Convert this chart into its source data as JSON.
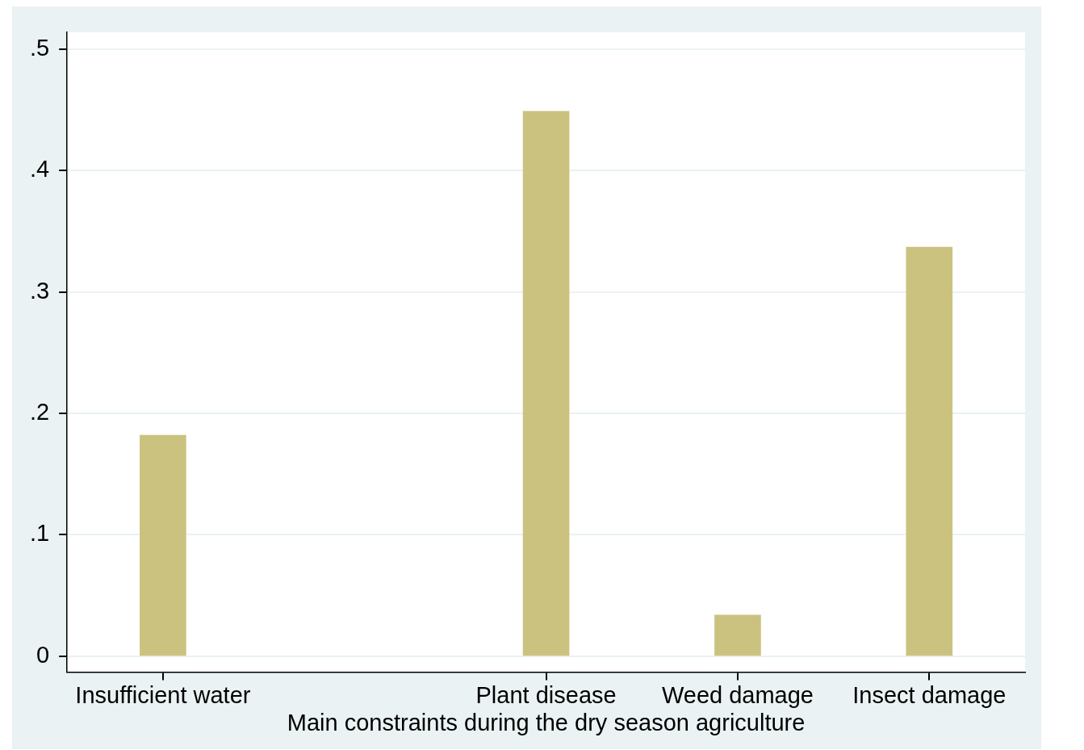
{
  "chart_data": {
    "type": "bar",
    "xlabel": "Main constraints during the dry season agriculture",
    "categories": [
      "Insufficient water",
      null,
      "Plant disease",
      "Weed damage",
      "Insect damage"
    ],
    "values": [
      0.182,
      null,
      0.449,
      0.034,
      0.337
    ],
    "color": "#cbc27f",
    "ylim": [
      -0.013,
      0.514
    ],
    "yticks": [
      {
        "value": 0,
        "label": "0"
      },
      {
        "value": 0.1,
        "label": ".1"
      },
      {
        "value": 0.2,
        "label": ".2"
      },
      {
        "value": 0.3,
        "label": ".3"
      },
      {
        "value": 0.4,
        "label": ".4"
      },
      {
        "value": 0.5,
        "label": ".5"
      }
    ],
    "grid": "y",
    "legend": false
  }
}
